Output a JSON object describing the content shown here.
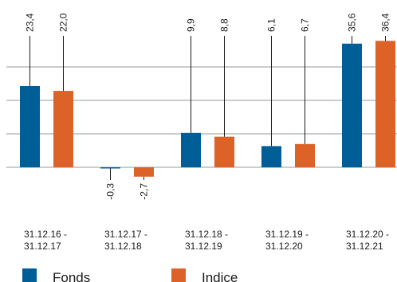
{
  "chart_data": {
    "type": "bar",
    "title": "",
    "xlabel": "",
    "ylabel": "",
    "categories": [
      [
        "31.12.16 -",
        "31.12.17"
      ],
      [
        "31.12.17 -",
        "31.12.18"
      ],
      [
        "31.12.18 -",
        "31.12.19"
      ],
      [
        "31.12.19 -",
        "31.12.20"
      ],
      [
        "31.12.20 -",
        "31.12.21"
      ]
    ],
    "series": [
      {
        "name": "Fonds",
        "color": "#005e96",
        "values": [
          23.4,
          -0.3,
          9.9,
          6.1,
          35.6
        ],
        "labels": [
          "23,4",
          "-0,3",
          "9,9",
          "6,1",
          "35,6"
        ]
      },
      {
        "name": "Indice",
        "color": "#dc6228",
        "values": [
          22.0,
          -2.7,
          8.8,
          6.7,
          36.4
        ],
        "labels": [
          "22,0",
          "-2,7",
          "8,8",
          "6,7",
          "36,4"
        ]
      }
    ],
    "grid": true,
    "legend_position": "bottom-left"
  }
}
